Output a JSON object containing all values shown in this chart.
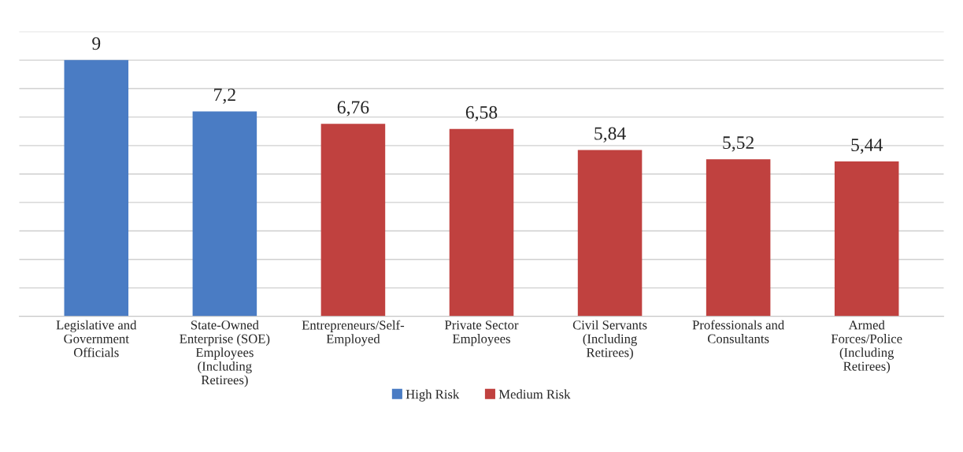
{
  "chart_data": {
    "type": "bar",
    "categories": [
      "Legislative and\nGovernment\nOfficials",
      "State-Owned\nEnterprise (SOE)\nEmployees\n(Including\nRetirees)",
      "Entrepreneurs/Self-\nEmployed",
      "Private Sector\nEmployees",
      "Civil Servants\n(Including\nRetirees)",
      "Professionals and\nConsultants",
      "Armed\nForces/Police\n(Including\nRetirees)"
    ],
    "series": [
      {
        "name": "High Risk",
        "color": "#4a7cc4",
        "values": [
          9,
          7.2,
          null,
          null,
          null,
          null,
          null
        ],
        "value_labels": [
          "9",
          "7,2",
          null,
          null,
          null,
          null,
          null
        ]
      },
      {
        "name": "Medium Risk",
        "color": "#c0413f",
        "values": [
          null,
          null,
          6.76,
          6.58,
          5.84,
          5.52,
          5.44
        ],
        "value_labels": [
          null,
          null,
          "6,76",
          "6,58",
          "5,84",
          "5,52",
          "5,44"
        ]
      }
    ],
    "ylim": [
      0,
      10
    ],
    "yticks": [
      {
        "value": 0,
        "label": null
      },
      {
        "value": 1,
        "label": null
      },
      {
        "value": 2,
        "label": null
      },
      {
        "value": 3,
        "label": null
      },
      {
        "value": 4,
        "label": null
      },
      {
        "value": 5,
        "label": null
      },
      {
        "value": 6,
        "label": null
      },
      {
        "value": 7,
        "label": null
      },
      {
        "value": 8,
        "label": null
      },
      {
        "value": 9,
        "label": null
      },
      {
        "value": 10,
        "label": null
      }
    ],
    "tick_labels": "x",
    "grid": "y",
    "legend": "bottom"
  }
}
